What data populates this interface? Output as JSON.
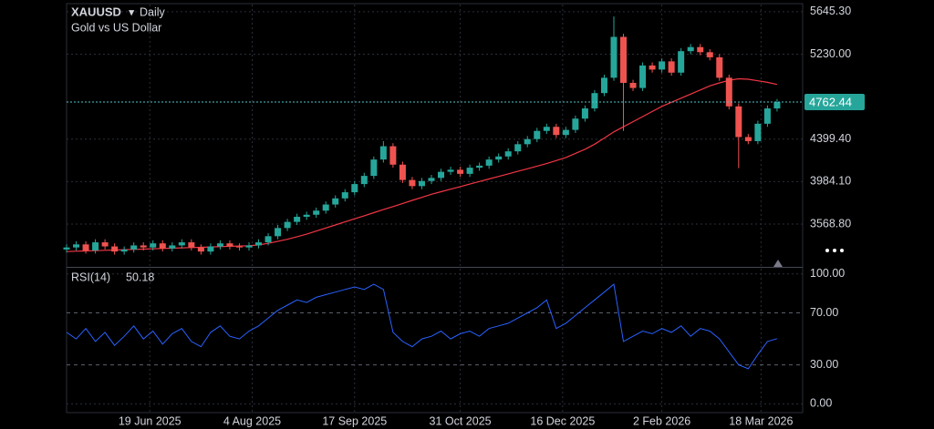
{
  "chart_data": {
    "type": "candlestick",
    "title": "XAUUSD",
    "interval": "Daily",
    "subtitle": "Gold vs US Dollar",
    "up_color": "#26a69a",
    "down_color": "#ef5350",
    "grid": true,
    "x": [
      0,
      3,
      6,
      9,
      12,
      15,
      18,
      21,
      24,
      27,
      30,
      33,
      36,
      39,
      42,
      45,
      48,
      51,
      54,
      57,
      60,
      63,
      66,
      69,
      72,
      75,
      78,
      81,
      84,
      87,
      90,
      93,
      96,
      99,
      102,
      105,
      108,
      111,
      114,
      117,
      120,
      123,
      126,
      129,
      132,
      135,
      138,
      141,
      144,
      147,
      150,
      153,
      156,
      159,
      162,
      165,
      168,
      171,
      174,
      177,
      180,
      183,
      186,
      189,
      192,
      195,
      198,
      201,
      204,
      207,
      210,
      213,
      216,
      219,
      222
    ],
    "open": [
      3320,
      3340,
      3370,
      3310,
      3390,
      3350,
      3300,
      3320,
      3360,
      3340,
      3380,
      3330,
      3360,
      3390,
      3340,
      3300,
      3350,
      3380,
      3350,
      3340,
      3360,
      3390,
      3450,
      3530,
      3590,
      3640,
      3660,
      3700,
      3760,
      3820,
      3880,
      3960,
      4040,
      4200,
      4330,
      4150,
      4000,
      3940,
      3990,
      4020,
      4080,
      4100,
      4060,
      4120,
      4140,
      4200,
      4230,
      4280,
      4350,
      4400,
      4480,
      4520,
      4440,
      4490,
      4600,
      4700,
      4850,
      5000,
      5400,
      4950,
      4900,
      5120,
      5080,
      5160,
      5050,
      5260,
      5300,
      5250,
      5200,
      5000,
      4720,
      4420,
      4380,
      4550,
      4700
    ],
    "high": [
      3370,
      3400,
      3400,
      3420,
      3420,
      3380,
      3350,
      3390,
      3390,
      3410,
      3410,
      3390,
      3420,
      3420,
      3370,
      3380,
      3410,
      3410,
      3380,
      3390,
      3420,
      3480,
      3560,
      3620,
      3670,
      3690,
      3730,
      3790,
      3850,
      3910,
      3990,
      4070,
      4230,
      4380,
      4360,
      4180,
      4030,
      4020,
      4050,
      4110,
      4130,
      4130,
      4150,
      4170,
      4230,
      4260,
      4310,
      4380,
      4430,
      4510,
      4550,
      4550,
      4520,
      4630,
      4730,
      4880,
      5030,
      5600,
      5430,
      4980,
      5150,
      5150,
      5190,
      5190,
      5290,
      5330,
      5330,
      5280,
      5230,
      5030,
      4750,
      4450,
      4580,
      4730,
      4792
    ],
    "low": [
      3290,
      3310,
      3280,
      3280,
      3320,
      3270,
      3270,
      3290,
      3310,
      3310,
      3300,
      3300,
      3330,
      3310,
      3270,
      3270,
      3320,
      3320,
      3310,
      3310,
      3330,
      3360,
      3420,
      3500,
      3560,
      3610,
      3630,
      3670,
      3730,
      3790,
      3850,
      3930,
      4010,
      4170,
      4120,
      3970,
      3910,
      3910,
      3960,
      3990,
      4050,
      4030,
      4030,
      4090,
      4110,
      4170,
      4200,
      4250,
      4320,
      4370,
      4450,
      4410,
      4410,
      4460,
      4570,
      4670,
      4820,
      4970,
      4480,
      4870,
      4870,
      5050,
      5050,
      5020,
      5020,
      5230,
      5220,
      5170,
      4970,
      4690,
      4116,
      4350,
      4350,
      4520,
      4670
    ],
    "close": [
      3340,
      3370,
      3310,
      3390,
      3350,
      3300,
      3320,
      3360,
      3340,
      3380,
      3330,
      3360,
      3390,
      3340,
      3300,
      3350,
      3380,
      3350,
      3340,
      3360,
      3390,
      3450,
      3530,
      3590,
      3640,
      3660,
      3700,
      3760,
      3820,
      3880,
      3960,
      4040,
      4200,
      4330,
      4150,
      4000,
      3940,
      3990,
      4020,
      4080,
      4100,
      4060,
      4120,
      4140,
      4200,
      4230,
      4280,
      4350,
      4400,
      4480,
      4520,
      4440,
      4490,
      4600,
      4700,
      4850,
      5000,
      5400,
      4950,
      4900,
      5120,
      5080,
      5160,
      5050,
      5260,
      5300,
      5250,
      5200,
      5000,
      4720,
      4420,
      4380,
      4550,
      4700,
      4762.44
    ],
    "ma": {
      "color": "#f23645",
      "values": [
        3300,
        3303,
        3306,
        3309,
        3312,
        3315,
        3318,
        3321,
        3324,
        3327,
        3330,
        3333,
        3336,
        3339,
        3342,
        3345,
        3348,
        3351,
        3354,
        3357,
        3365,
        3380,
        3400,
        3420,
        3445,
        3470,
        3500,
        3530,
        3560,
        3590,
        3620,
        3650,
        3680,
        3710,
        3740,
        3770,
        3800,
        3830,
        3860,
        3885,
        3910,
        3935,
        3960,
        3985,
        4010,
        4035,
        4060,
        4085,
        4110,
        4135,
        4160,
        4190,
        4220,
        4260,
        4300,
        4350,
        4410,
        4470,
        4520,
        4570,
        4620,
        4670,
        4720,
        4760,
        4800,
        4840,
        4880,
        4920,
        4950,
        4975,
        4990,
        4985,
        4970,
        4955,
        4935
      ]
    },
    "xlim": [
      0,
      230
    ],
    "xticks": [
      {
        "value": 26,
        "label": "19 Jun 2025"
      },
      {
        "value": 58,
        "label": "4 Aug 2025"
      },
      {
        "value": 90,
        "label": "17 Sep 2025"
      },
      {
        "value": 123,
        "label": "31 Oct 2025"
      },
      {
        "value": 155,
        "label": "16 Dec 2025"
      },
      {
        "value": 186,
        "label": "2 Feb 2026"
      },
      {
        "value": 217,
        "label": "18 Mar 2026"
      }
    ],
    "ylim": [
      3150,
      5716
    ],
    "yticks": [
      {
        "value": 5645.3,
        "label": "5645.30"
      },
      {
        "value": 5230,
        "label": "5230.00"
      },
      {
        "value": 4399.4,
        "label": "4399.40"
      },
      {
        "value": 3984.1,
        "label": "3984.10"
      },
      {
        "value": 3568.8,
        "label": "3568.80"
      }
    ],
    "rsi": {
      "name": "RSI(14)",
      "color": "#2962ff",
      "values": [
        55,
        50,
        58,
        48,
        55,
        45,
        52,
        60,
        50,
        56,
        46,
        54,
        58,
        48,
        44,
        55,
        60,
        52,
        50,
        56,
        60,
        66,
        72,
        76,
        80,
        78,
        82,
        84,
        86,
        88,
        90,
        88,
        92,
        88,
        55,
        48,
        44,
        50,
        52,
        56,
        50,
        54,
        56,
        52,
        58,
        60,
        62,
        66,
        70,
        74,
        80,
        58,
        62,
        68,
        74,
        80,
        86,
        92,
        48,
        52,
        56,
        54,
        58,
        55,
        60,
        52,
        58,
        56,
        50,
        40,
        30,
        27,
        38,
        48,
        50.18
      ],
      "ylim": [
        -6,
        104
      ],
      "yticks": [
        {
          "value": 100,
          "label": "100.00"
        },
        {
          "value": 70,
          "label": "70.00"
        },
        {
          "value": 30,
          "label": "30.00"
        },
        {
          "value": 0,
          "label": "0.00"
        }
      ]
    }
  }
}
